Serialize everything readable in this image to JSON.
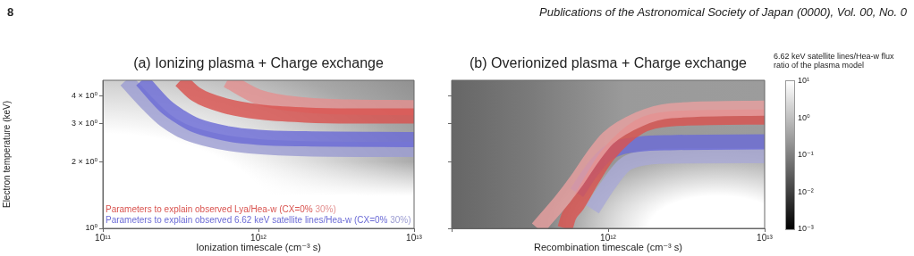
{
  "chart_data": [
    {
      "type": "line",
      "title": "(a) Ionizing plasma + Charge exchange",
      "xlabel": "Ionization timescale (cm⁻³ s)",
      "ylabel": "Electron temperature (keV)",
      "log": "xy",
      "grid": false,
      "annotations": [
        "8",
        "Publications of the Astronomical Society of Japan (0000), Vol. 00, No. 0"
      ],
      "xlim": [
        100000000000.0,
        10000000000000.0
      ],
      "xticks": [
        {
          "value": 100000000000.0,
          "label": "10¹¹"
        },
        {
          "value": 1000000000000.0,
          "label": "10¹²"
        },
        {
          "value": 10000000000000.0,
          "label": "10¹³"
        }
      ],
      "ylim": [
        1,
        4.7
      ],
      "yticks": [
        {
          "value": 1,
          "label": "10⁰"
        },
        {
          "value": 2,
          "label": "2 × 10⁰"
        },
        {
          "value": 3,
          "label": "3 × 10⁰"
        },
        {
          "value": 4,
          "label": "4 × 10⁰"
        }
      ],
      "series": [
        {
          "name": "Parameters to explain observed Lya/Hea-w (CX=0%",
          "color": "#d9534f",
          "x": [
            316000000000.0,
            398000000000.0,
            631000000000.0,
            1000000000000.0,
            2000000000000.0,
            3980000000000.0,
            10000000000000.0
          ],
          "values": [
            4.7,
            4.05,
            3.58,
            3.38,
            3.27,
            3.24,
            3.24
          ]
        },
        {
          "name": "30%)",
          "color": "#e39090",
          "x": [
            631000000000.0,
            1000000000000.0,
            2000000000000.0,
            3980000000000.0,
            10000000000000.0
          ],
          "values": [
            4.7,
            3.95,
            3.63,
            3.55,
            3.53
          ]
        },
        {
          "name": "Parameters to explain observed 6.62 keV satellite lines/Hea-w (CX=0%",
          "color": "#6b6bd6",
          "x": [
            178000000000.0,
            251000000000.0,
            316000000000.0,
            398000000000.0,
            631000000000.0,
            1000000000000.0,
            2000000000000.0,
            10000000000000.0
          ],
          "values": [
            4.7,
            3.6,
            3.2,
            2.93,
            2.69,
            2.59,
            2.55,
            2.53
          ]
        },
        {
          "name": "30%)",
          "color": "#9c9dd2",
          "x": [
            141000000000.0,
            200000000000.0,
            251000000000.0,
            316000000000.0,
            398000000000.0,
            631000000000.0,
            1000000000000.0,
            2000000000000.0,
            10000000000000.0
          ],
          "values": [
            4.7,
            3.6,
            3.1,
            2.8,
            2.63,
            2.44,
            2.35,
            2.3,
            2.28
          ]
        }
      ]
    },
    {
      "type": "line",
      "title": "(b) Overionized plasma + Charge exchange",
      "xlabel": "Recombination timescale (cm⁻³ s)",
      "log": "xy",
      "grid": false,
      "tick_labels": "x",
      "clabel": "6.62 keV satellite lines/Hea-w flux ratio of the plasma model",
      "annotations": [
        "10¹",
        "10⁰",
        "10⁻¹",
        "10⁻²",
        "10⁻³"
      ],
      "xlim": [
        100000000000.0,
        10000000000000.0
      ],
      "xticks": [
        {
          "value": 100000000000.0,
          "label": null
        },
        {
          "value": 1000000000000.0,
          "label": "10¹²"
        },
        {
          "value": 10000000000000.0,
          "label": "10¹³"
        }
      ],
      "ylim": [
        1,
        4.7
      ],
      "yticks": [
        {
          "value": 1,
          "label": null
        },
        {
          "value": 2,
          "label": null
        },
        {
          "value": 3,
          "label": null
        },
        {
          "value": 4,
          "label": null
        }
      ],
      "series": [
        {
          "color": "#e8a0a0",
          "x": [
            355000000000.0,
            398000000000.0,
            501000000000.0,
            631000000000.0,
            794000000000.0,
            1000000000000.0,
            1580000000000.0,
            2510000000000.0,
            10000000000000.0
          ],
          "values": [
            1.0,
            1.1,
            1.33,
            1.65,
            2.1,
            2.57,
            3.13,
            3.42,
            3.51
          ]
        },
        {
          "color": "#d9534f",
          "x": [
            530000000000.0,
            562000000000.0,
            631000000000.0,
            794000000000.0,
            1000000000000.0,
            1580000000000.0,
            2510000000000.0,
            10000000000000.0
          ],
          "values": [
            1.0,
            1.14,
            1.27,
            1.68,
            2.16,
            2.89,
            3.14,
            3.2
          ]
        },
        {
          "color": "#6b6bd6",
          "x": [
            631000000000.0,
            794000000000.0,
            1000000000000.0,
            1580000000000.0,
            2510000000000.0,
            10000000000000.0
          ],
          "values": [
            1.45,
            1.85,
            2.2,
            2.41,
            2.45,
            2.47
          ]
        },
        {
          "color": "#a9aad6",
          "x": [
            794000000000.0,
            1000000000000.0,
            1260000000000.0,
            1580000000000.0,
            2510000000000.0,
            10000000000000.0
          ],
          "values": [
            1.22,
            1.57,
            1.93,
            2.07,
            2.13,
            2.14
          ]
        }
      ]
    }
  ]
}
